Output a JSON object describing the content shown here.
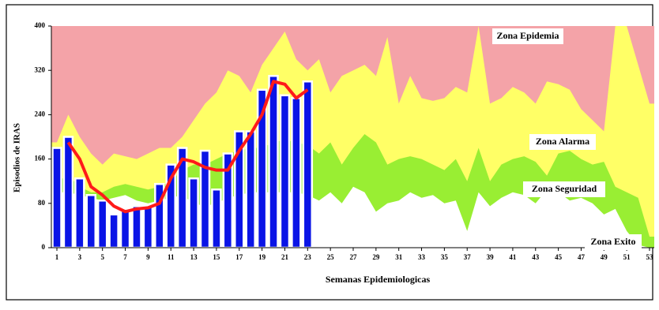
{
  "chart_data": {
    "type": "endemic-channel",
    "y_label": "Episodios de IRAS",
    "x_label": "Semanas Epidemiologicas",
    "x": [
      1,
      2,
      3,
      4,
      5,
      6,
      7,
      8,
      9,
      10,
      11,
      12,
      13,
      14,
      15,
      16,
      17,
      18,
      19,
      20,
      21,
      22,
      23,
      24,
      25,
      26,
      27,
      28,
      29,
      30,
      31,
      32,
      33,
      34,
      35,
      36,
      37,
      38,
      39,
      40,
      41,
      42,
      43,
      44,
      45,
      46,
      47,
      48,
      49,
      50,
      51,
      52,
      53
    ],
    "xlim": [
      1,
      53
    ],
    "xticks": [
      1,
      3,
      5,
      7,
      9,
      11,
      13,
      15,
      17,
      19,
      21,
      23,
      25,
      27,
      29,
      31,
      33,
      35,
      37,
      39,
      41,
      43,
      45,
      47,
      49,
      51,
      53
    ],
    "ylim": [
      0,
      400
    ],
    "yticks": [
      0,
      80,
      160,
      240,
      320,
      400
    ],
    "background_zone": {
      "name": "Zona Epidemia",
      "color": "#f4a3a8"
    },
    "zones": [
      {
        "name": "Zona Alarma",
        "color": "#ffff66",
        "values": [
          190,
          240,
          200,
          170,
          150,
          170,
          165,
          160,
          170,
          180,
          180,
          200,
          230,
          260,
          280,
          320,
          310,
          280,
          330,
          360,
          390,
          340,
          320,
          340,
          280,
          310,
          320,
          330,
          310,
          380,
          260,
          310,
          270,
          265,
          270,
          290,
          280,
          400,
          260,
          270,
          290,
          280,
          260,
          300,
          295,
          285,
          250,
          230,
          210,
          400,
          400,
          330,
          260
        ]
      },
      {
        "name": "Zona Seguridad",
        "color": "#99ee33",
        "values": [
          120,
          130,
          110,
          100,
          100,
          110,
          115,
          110,
          105,
          110,
          120,
          140,
          150,
          150,
          160,
          170,
          175,
          180,
          180,
          190,
          195,
          190,
          185,
          170,
          190,
          150,
          180,
          205,
          190,
          150,
          160,
          165,
          160,
          150,
          140,
          160,
          120,
          180,
          120,
          150,
          160,
          165,
          155,
          130,
          170,
          175,
          160,
          150,
          155,
          110,
          100,
          90,
          20
        ]
      },
      {
        "name": "Zona Exito",
        "color": "#ffffff",
        "values": [
          100,
          100,
          95,
          90,
          85,
          90,
          95,
          85,
          80,
          85,
          90,
          95,
          80,
          75,
          80,
          90,
          95,
          100,
          100,
          100,
          100,
          100,
          95,
          85,
          100,
          80,
          110,
          100,
          65,
          80,
          85,
          100,
          90,
          95,
          80,
          85,
          30,
          100,
          75,
          90,
          100,
          95,
          80,
          105,
          100,
          85,
          90,
          80,
          60,
          70,
          30,
          5,
          0
        ]
      }
    ],
    "bars": {
      "color": "#0a14e6",
      "values": [
        180,
        200,
        125,
        95,
        85,
        60,
        70,
        75,
        75,
        115,
        150,
        180,
        125,
        175,
        105,
        170,
        210,
        210,
        285,
        310,
        275,
        270,
        300,
        null,
        null,
        null,
        null,
        null,
        null,
        null,
        null,
        null,
        null,
        null,
        null,
        null,
        null,
        null,
        null,
        null,
        null,
        null,
        null,
        null,
        null,
        null,
        null,
        null,
        null,
        null,
        null,
        null,
        null
      ]
    },
    "line": {
      "color": "#ff1a1a",
      "values": [
        null,
        190,
        160,
        110,
        95,
        75,
        65,
        70,
        72,
        80,
        125,
        160,
        155,
        145,
        140,
        140,
        175,
        205,
        240,
        300,
        295,
        270,
        285,
        null,
        null,
        null,
        null,
        null,
        null,
        null,
        null,
        null,
        null,
        null,
        null,
        null,
        null,
        null,
        null,
        null,
        null,
        null,
        null,
        null,
        null,
        null,
        null,
        null,
        null,
        null,
        null,
        null,
        null
      ]
    }
  }
}
